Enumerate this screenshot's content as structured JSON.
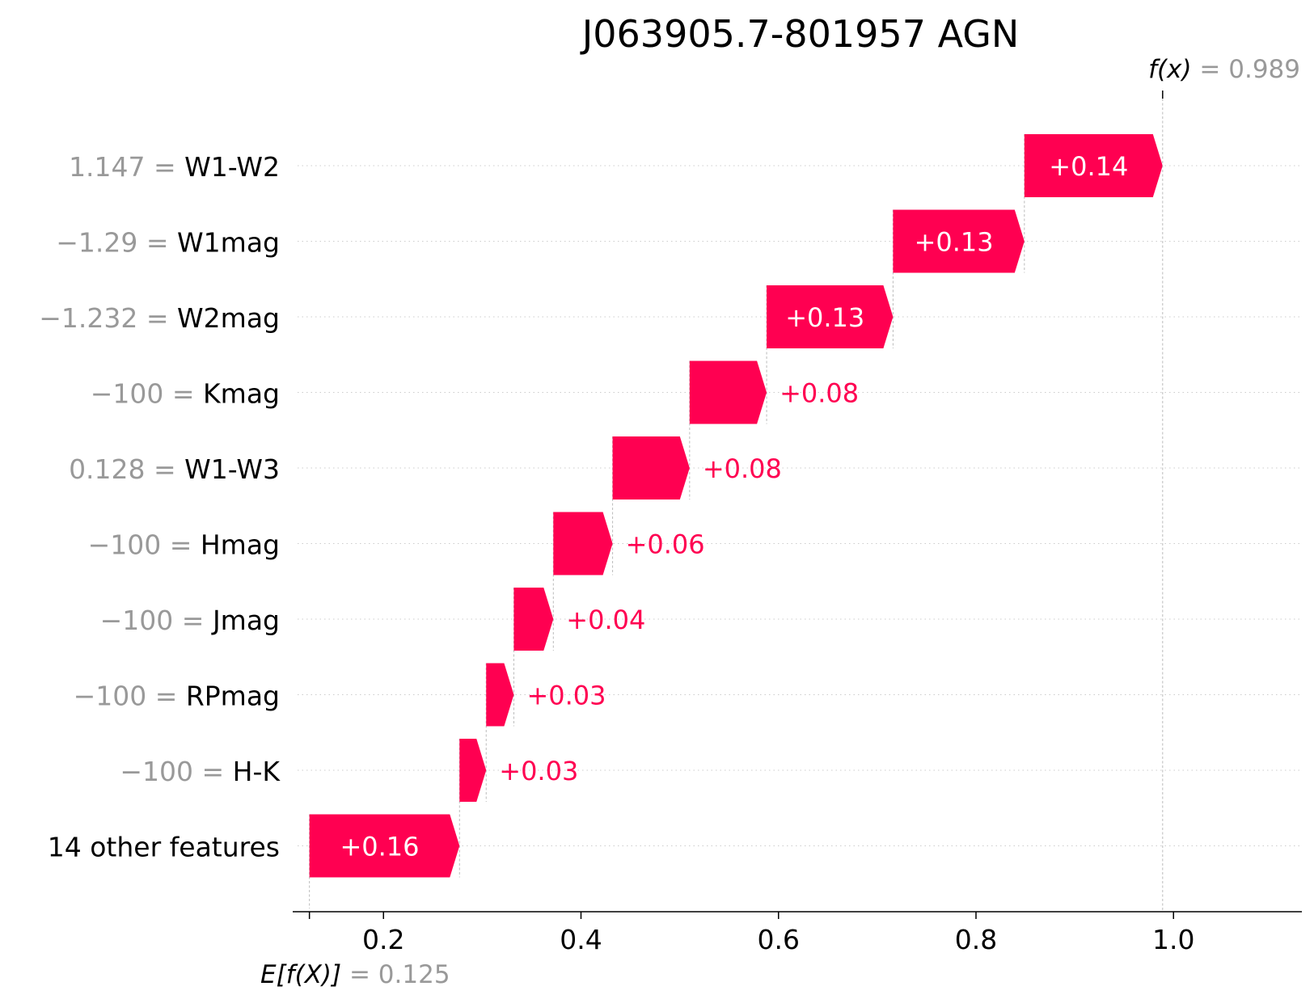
{
  "chart_data": {
    "type": "waterfall",
    "title": "J063905.7-801957 AGN",
    "base_value": 0.125,
    "base_label": {
      "prefix": "E[f(X)]",
      "value_text": "= 0.125"
    },
    "output_value": 0.989,
    "output_label": {
      "prefix": "f(x)",
      "value_text": "= 0.989"
    },
    "xlim": [
      0.113,
      1.13
    ],
    "x_ticks": [
      0.2,
      0.4,
      0.6,
      0.8,
      1.0
    ],
    "x_tick_labels": [
      "0.2",
      "0.4",
      "0.6",
      "0.8",
      "1.0"
    ],
    "positive_color": "#ff0051",
    "features": [
      {
        "value_text": "1.147",
        "name": "W1-W2",
        "contribution": 0.14,
        "label": "+0.14",
        "start": 0.849,
        "end": 0.989
      },
      {
        "value_text": "−1.29",
        "name": "W1mag",
        "contribution": 0.13,
        "label": "+0.13",
        "start": 0.716,
        "end": 0.849
      },
      {
        "value_text": "−1.232",
        "name": "W2mag",
        "contribution": 0.13,
        "label": "+0.13",
        "start": 0.588,
        "end": 0.716
      },
      {
        "value_text": "−100",
        "name": "Kmag",
        "contribution": 0.08,
        "label": "+0.08",
        "start": 0.51,
        "end": 0.588
      },
      {
        "value_text": "0.128",
        "name": "W1-W3",
        "contribution": 0.08,
        "label": "+0.08",
        "start": 0.432,
        "end": 0.51
      },
      {
        "value_text": "−100",
        "name": "Hmag",
        "contribution": 0.06,
        "label": "+0.06",
        "start": 0.372,
        "end": 0.432
      },
      {
        "value_text": "−100",
        "name": "Jmag",
        "contribution": 0.04,
        "label": "+0.04",
        "start": 0.332,
        "end": 0.372
      },
      {
        "value_text": "−100",
        "name": "RPmag",
        "contribution": 0.03,
        "label": "+0.03",
        "start": 0.304,
        "end": 0.332
      },
      {
        "value_text": "−100",
        "name": "H-K",
        "contribution": 0.03,
        "label": "+0.03",
        "start": 0.277,
        "end": 0.304
      },
      {
        "value_text": "",
        "name": "14 other features",
        "contribution": 0.16,
        "label": "+0.16",
        "start": 0.125,
        "end": 0.277
      }
    ]
  }
}
